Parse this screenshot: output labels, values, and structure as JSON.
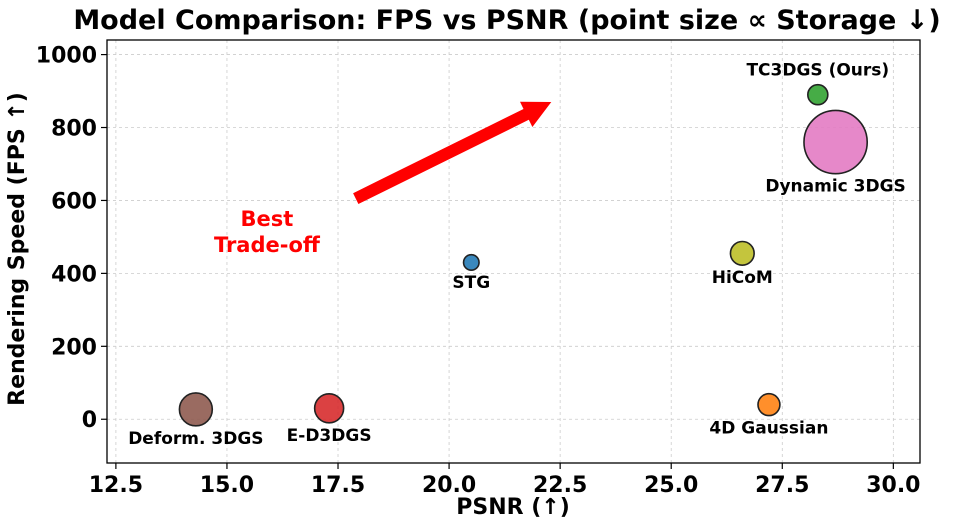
{
  "chart_data": {
    "type": "scatter",
    "title": "Model Comparison: FPS vs PSNR (point size ∝ Storage ↓)",
    "xlabel": "PSNR (↑)",
    "ylabel": "Rendering Speed (FPS ↑)",
    "xlim": [
      12.3,
      30.6
    ],
    "ylim": [
      -120,
      1040
    ],
    "xticks": [
      12.5,
      15.0,
      17.5,
      20.0,
      22.5,
      25.0,
      27.5,
      30.0
    ],
    "xtick_labels": [
      "12.5",
      "15.0",
      "17.5",
      "20.0",
      "22.5",
      "25.0",
      "27.5",
      "30.0"
    ],
    "yticks": [
      0,
      200,
      400,
      600,
      800,
      1000
    ],
    "ytick_labels": [
      "0",
      "200",
      "400",
      "600",
      "800",
      "1000"
    ],
    "grid": true,
    "points": [
      {
        "label": "TC3DGS (Ours)",
        "x": 28.3,
        "y": 890,
        "size": 1,
        "color": "#2ca02c",
        "label_pos": "above"
      },
      {
        "label": "Dynamic 3DGS",
        "x": 28.7,
        "y": 760,
        "size": 10,
        "color": "#e377c2",
        "label_pos": "below"
      },
      {
        "label": "STG",
        "x": 20.5,
        "y": 430,
        "size": 0.6,
        "color": "#1f77b4",
        "label_pos": "below"
      },
      {
        "label": "HiCoM",
        "x": 26.6,
        "y": 455,
        "size": 1.4,
        "color": "#bcbd22",
        "label_pos": "below"
      },
      {
        "label": "4D Gaussian",
        "x": 27.2,
        "y": 40,
        "size": 1.2,
        "color": "#ff7f0e",
        "label_pos": "below"
      },
      {
        "label": "Deform. 3DGS",
        "x": 14.3,
        "y": 27,
        "size": 2.7,
        "color": "#8c564b",
        "label_pos": "below"
      },
      {
        "label": "E-D3DGS",
        "x": 17.3,
        "y": 30,
        "size": 2.1,
        "color": "#d62728",
        "label_pos": "below"
      }
    ],
    "annotations": [
      {
        "text_lines": [
          "Best",
          "Trade-off"
        ],
        "color": "#ff0000",
        "x": 15.9,
        "y": 530,
        "arrow": {
          "from": [
            17.9,
            605
          ],
          "to": [
            22.3,
            870
          ]
        }
      }
    ]
  }
}
